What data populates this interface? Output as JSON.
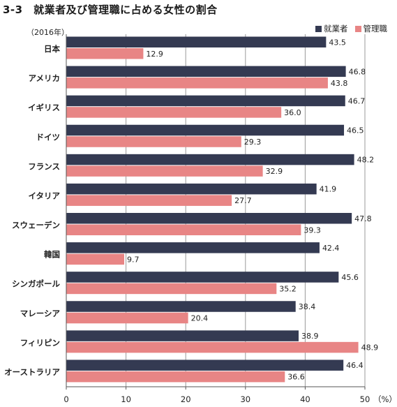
{
  "title": "3-3　就業者及び管理職に占める女性の割合",
  "year_label": "（2016年）",
  "unit_label": "（%）",
  "colors": {
    "employed": "#343a52",
    "managers": "#e88585",
    "axis": "#555555",
    "grid": "#9a9a9a"
  },
  "chart_data": {
    "type": "bar",
    "orientation": "horizontal",
    "categories": [
      "日本",
      "アメリカ",
      "イギリス",
      "ドイツ",
      "フランス",
      "イタリア",
      "スウェーデン",
      "韓国",
      "シンガポール",
      "マレーシア",
      "フィリピン",
      "オーストラリア"
    ],
    "series": [
      {
        "name": "就業者",
        "values": [
          43.5,
          46.8,
          46.7,
          46.5,
          48.2,
          41.9,
          47.8,
          42.4,
          45.6,
          38.4,
          38.9,
          46.4
        ]
      },
      {
        "name": "管理職",
        "values": [
          12.9,
          43.8,
          36.0,
          29.3,
          32.9,
          27.7,
          39.3,
          9.7,
          35.2,
          20.4,
          48.9,
          36.6
        ]
      }
    ],
    "value_labels": {
      "就業者": [
        "43.5",
        "46.8",
        "46.7",
        "46.5",
        "48.2",
        "41.9",
        "47.8",
        "42.4",
        "45.6",
        "38.4",
        "38.9",
        "46.4"
      ],
      "管理職": [
        "12.9",
        "43.8",
        "36.0",
        "29.3",
        "32.9",
        "27.7",
        "39.3",
        "9.7",
        "35.2",
        "20.4",
        "48.9",
        "36.6"
      ]
    },
    "xlim": [
      0,
      50
    ],
    "xticks": [
      0,
      10,
      20,
      30,
      40,
      50
    ],
    "xtick_labels": [
      "0",
      "10",
      "20",
      "30",
      "40",
      "50"
    ],
    "grid": "vertical",
    "legend_position": "top-right"
  }
}
